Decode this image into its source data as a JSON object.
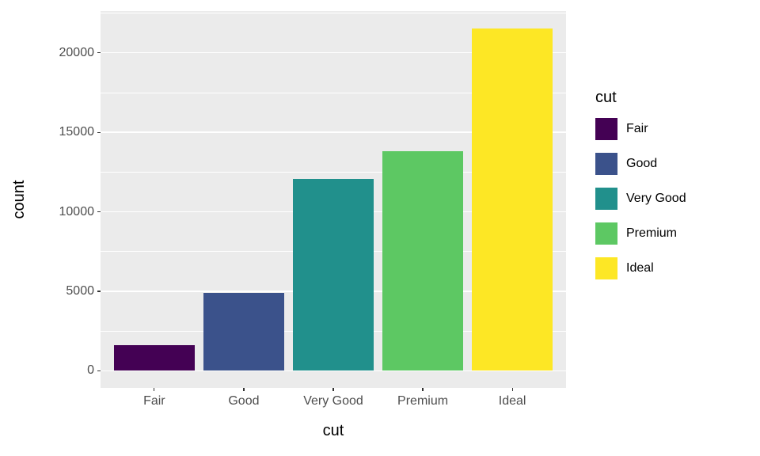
{
  "chart_data": {
    "type": "bar",
    "title": "",
    "xlabel": "cut",
    "ylabel": "count",
    "categories": [
      "Fair",
      "Good",
      "Very Good",
      "Premium",
      "Ideal"
    ],
    "values": [
      1610,
      4906,
      12082,
      13791,
      21551
    ],
    "colors": [
      "#440154",
      "#3B528B",
      "#21908C",
      "#5DC863",
      "#FDE725"
    ],
    "ylim": [
      -1078,
      22629
    ],
    "y_major_ticks": [
      0,
      5000,
      10000,
      15000,
      20000
    ],
    "y_minor_ticks": [
      2500,
      7500,
      12500,
      17500,
      22500
    ],
    "grid": true,
    "bar_width_fraction": 0.9,
    "panel_bg": "#EBEBEB",
    "grid_color": "#FFFFFF",
    "tick_label_color": "#4D4D4D",
    "axis_title_color": "#000000",
    "legend": {
      "title": "cut",
      "position": "right",
      "entries": [
        {
          "label": "Fair",
          "color": "#440154"
        },
        {
          "label": "Good",
          "color": "#3B528B"
        },
        {
          "label": "Very Good",
          "color": "#21908C"
        },
        {
          "label": "Premium",
          "color": "#5DC863"
        },
        {
          "label": "Ideal",
          "color": "#FDE725"
        }
      ]
    }
  }
}
